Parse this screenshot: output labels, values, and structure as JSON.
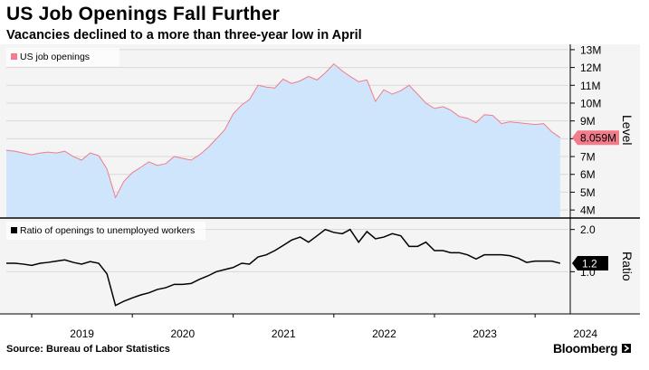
{
  "title": "US Job Openings Fall Further",
  "subtitle": "Vacancies declined to a more than three-year low in April",
  "source": "Source: Bureau of Labor Statistics",
  "brand": "Bloomberg",
  "colors": {
    "area_fill": "#cfe5fb",
    "area_line": "#f07c8c",
    "ratio_line": "#000000",
    "callout_bg": "#f07c8c",
    "ratio_callout_bg": "#000000"
  },
  "chart_data": [
    {
      "type": "area",
      "legend": "US job openings",
      "legend_position": "top-left",
      "axis_label": "Level",
      "ylim": [
        3600000,
        13300000
      ],
      "ytick_values": [
        4000000,
        5000000,
        6000000,
        7000000,
        8000000,
        9000000,
        10000000,
        11000000,
        12000000,
        13000000
      ],
      "ytick_labels": [
        "4M",
        "5M",
        "6M",
        "7M",
        "8M",
        "9M",
        "10M",
        "11M",
        "12M",
        "13M"
      ],
      "last_value_label": "8.059M",
      "x": [
        "2018-10",
        "2018-11",
        "2018-12",
        "2019-01",
        "2019-02",
        "2019-03",
        "2019-04",
        "2019-05",
        "2019-06",
        "2019-07",
        "2019-08",
        "2019-09",
        "2019-10",
        "2019-11",
        "2019-12",
        "2020-01",
        "2020-02",
        "2020-03",
        "2020-04",
        "2020-05",
        "2020-06",
        "2020-07",
        "2020-08",
        "2020-09",
        "2020-10",
        "2020-11",
        "2020-12",
        "2021-01",
        "2021-02",
        "2021-03",
        "2021-04",
        "2021-05",
        "2021-06",
        "2021-07",
        "2021-08",
        "2021-09",
        "2021-10",
        "2021-11",
        "2021-12",
        "2022-01",
        "2022-02",
        "2022-03",
        "2022-04",
        "2022-05",
        "2022-06",
        "2022-07",
        "2022-08",
        "2022-09",
        "2022-10",
        "2022-11",
        "2022-12",
        "2023-01",
        "2023-02",
        "2023-03",
        "2023-04",
        "2023-05",
        "2023-06",
        "2023-07",
        "2023-08",
        "2023-09",
        "2023-10",
        "2023-11",
        "2023-12",
        "2024-01",
        "2024-02",
        "2024-03",
        "2024-04"
      ],
      "values": [
        7350000,
        7300000,
        7200000,
        7100000,
        7200000,
        7250000,
        7200000,
        7300000,
        7000000,
        6800000,
        7200000,
        7050000,
        6300000,
        4700000,
        5600000,
        6100000,
        6400000,
        6700000,
        6500000,
        6600000,
        7000000,
        6900000,
        6800000,
        7100000,
        7500000,
        8000000,
        8500000,
        9400000,
        9900000,
        10200000,
        11000000,
        10900000,
        10850000,
        11350000,
        11100000,
        11250000,
        11500000,
        11300000,
        11700000,
        12200000,
        11800000,
        11500000,
        11200000,
        11300000,
        10100000,
        10750000,
        10500000,
        10700000,
        11000000,
        10500000,
        10000000,
        9700000,
        9800000,
        9600000,
        9250000,
        9150000,
        8900000,
        9350000,
        9300000,
        8850000,
        8950000,
        8900000,
        8850000,
        8800000,
        8850000,
        8400000,
        8059000
      ]
    },
    {
      "type": "line",
      "legend": "Ratio of openings to unemployed workers",
      "legend_position": "top-left",
      "axis_label": "Ratio",
      "ylim": [
        0,
        2.25
      ],
      "ytick_values": [
        1.0,
        2.0
      ],
      "ytick_labels": [
        "1.0",
        "2.0"
      ],
      "last_value_label": "1.2",
      "x": [
        "2018-10",
        "2018-11",
        "2018-12",
        "2019-01",
        "2019-02",
        "2019-03",
        "2019-04",
        "2019-05",
        "2019-06",
        "2019-07",
        "2019-08",
        "2019-09",
        "2019-10",
        "2019-11",
        "2019-12",
        "2020-01",
        "2020-02",
        "2020-03",
        "2020-04",
        "2020-05",
        "2020-06",
        "2020-07",
        "2020-08",
        "2020-09",
        "2020-10",
        "2020-11",
        "2020-12",
        "2021-01",
        "2021-02",
        "2021-03",
        "2021-04",
        "2021-05",
        "2021-06",
        "2021-07",
        "2021-08",
        "2021-09",
        "2021-10",
        "2021-11",
        "2021-12",
        "2022-01",
        "2022-02",
        "2022-03",
        "2022-04",
        "2022-05",
        "2022-06",
        "2022-07",
        "2022-08",
        "2022-09",
        "2022-10",
        "2022-11",
        "2022-12",
        "2023-01",
        "2023-02",
        "2023-03",
        "2023-04",
        "2023-05",
        "2023-06",
        "2023-07",
        "2023-08",
        "2023-09",
        "2023-10",
        "2023-11",
        "2023-12",
        "2024-01",
        "2024-02",
        "2024-03",
        "2024-04"
      ],
      "values": [
        1.2,
        1.2,
        1.18,
        1.15,
        1.2,
        1.22,
        1.25,
        1.28,
        1.22,
        1.18,
        1.24,
        1.2,
        0.95,
        0.2,
        0.3,
        0.38,
        0.45,
        0.5,
        0.58,
        0.62,
        0.7,
        0.7,
        0.72,
        0.82,
        0.9,
        1.0,
        1.05,
        1.1,
        1.2,
        1.18,
        1.35,
        1.4,
        1.5,
        1.62,
        1.75,
        1.82,
        1.7,
        1.85,
        2.0,
        1.93,
        1.9,
        2.0,
        1.7,
        1.95,
        1.78,
        1.82,
        1.9,
        1.85,
        1.6,
        1.6,
        1.7,
        1.5,
        1.5,
        1.45,
        1.45,
        1.4,
        1.3,
        1.4,
        1.4,
        1.4,
        1.38,
        1.32,
        1.22,
        1.25,
        1.25,
        1.25,
        1.2
      ]
    }
  ],
  "x_axis": {
    "ticks": [
      {
        "label": "2019",
        "at": "2019-01"
      },
      {
        "label": "2020",
        "at": "2020-01"
      },
      {
        "label": "2021",
        "at": "2021-01"
      },
      {
        "label": "2022",
        "at": "2022-01"
      },
      {
        "label": "2023",
        "at": "2023-01"
      },
      {
        "label": "2024",
        "at": "2024-01"
      }
    ]
  }
}
